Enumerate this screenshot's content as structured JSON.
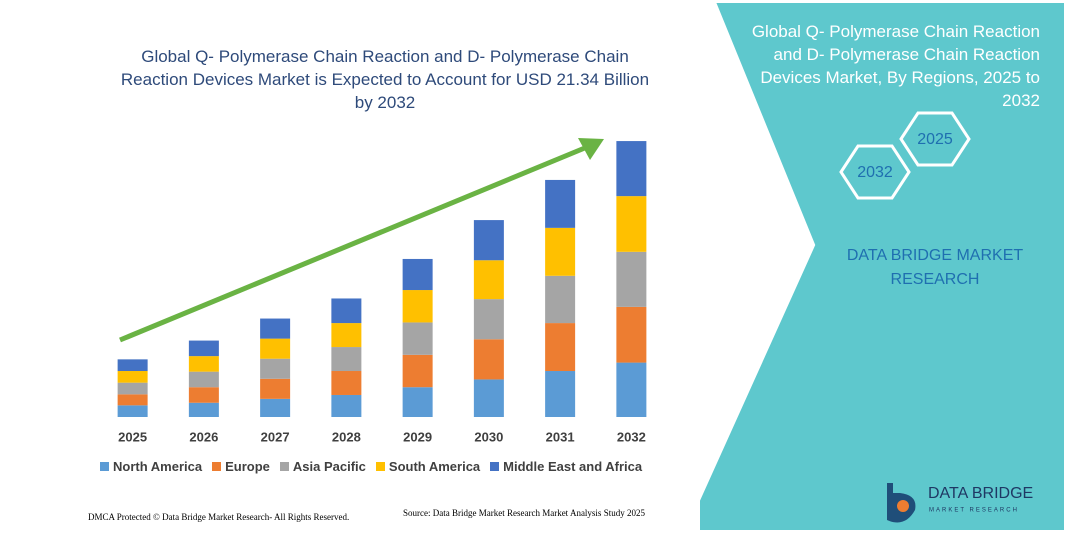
{
  "chart_data": {
    "type": "stacked_bar",
    "title": "Global Q- Polymerase Chain Reaction and D- Polymerase Chain Reaction Devices Market is Expected to Account for USD 21.34 Billion by 2032",
    "categories": [
      "2025",
      "2026",
      "2027",
      "2028",
      "2029",
      "2030",
      "2031",
      "2032"
    ],
    "series": [
      {
        "name": "North America",
        "color": "#5b9bd5",
        "values": [
          0.9,
          1.1,
          1.4,
          1.7,
          2.3,
          2.9,
          3.55,
          4.2
        ]
      },
      {
        "name": "Europe",
        "color": "#ed7d31",
        "values": [
          0.85,
          1.2,
          1.55,
          1.85,
          2.5,
          3.1,
          3.7,
          4.3
        ]
      },
      {
        "name": "Asia Pacific",
        "color": "#a5a5a5",
        "values": [
          0.9,
          1.2,
          1.55,
          1.85,
          2.5,
          3.1,
          3.65,
          4.25
        ]
      },
      {
        "name": "South America",
        "color": "#ffc000",
        "values": [
          0.9,
          1.2,
          1.55,
          1.85,
          2.5,
          3.0,
          3.7,
          4.3
        ]
      },
      {
        "name": "Middle East and Africa",
        "color": "#4472c4",
        "values": [
          0.9,
          1.2,
          1.55,
          1.9,
          2.4,
          3.1,
          3.7,
          4.25
        ]
      }
    ],
    "ylim": [
      0,
      22
    ],
    "legend": "bottom"
  },
  "side_panel": {
    "title": "Global Q- Polymerase Chain Reaction and D- Polymerase Chain Reaction Devices Market, By Regions, 2025 to 2032",
    "hexagons": [
      "2025",
      "2032"
    ],
    "brand": "DATA BRIDGE MARKET RESEARCH"
  },
  "logo": {
    "name": "DATA BRIDGE",
    "tagline": "MARKET RESEARCH"
  },
  "footer": {
    "left": "DMCA Protected © Data Bridge Market Research- All Rights Reserved.",
    "source": "Source: Data Bridge Market Research Market Analysis Study 2025"
  }
}
